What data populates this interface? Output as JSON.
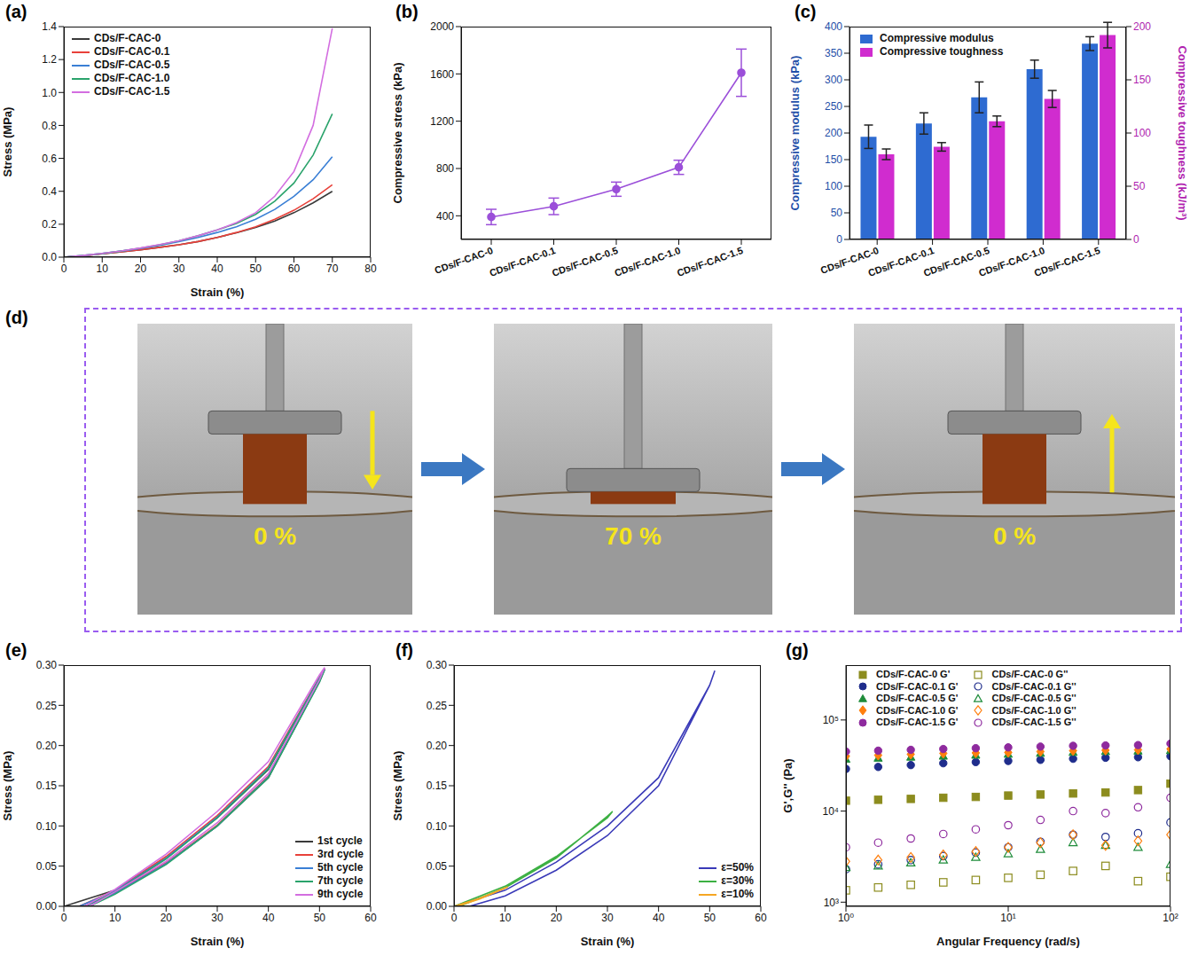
{
  "chart_data": [
    {
      "type": "line",
      "panel": "(a)",
      "x_label": "Strain (%)",
      "y_label": "Stress (MPa)",
      "x": [
        0,
        5,
        10,
        15,
        20,
        25,
        30,
        35,
        40,
        45,
        50,
        55,
        60,
        65,
        70
      ],
      "xlim": [
        0,
        80
      ],
      "xticks": [
        0,
        10,
        20,
        30,
        40,
        50,
        60,
        70,
        80
      ],
      "ylim": [
        0,
        1.4
      ],
      "yticks": [
        {
          "value": 0,
          "label": "0.0"
        },
        0.2,
        0.4,
        0.6,
        0.8,
        {
          "value": 1,
          "label": "1.0"
        },
        1.2,
        1.4
      ],
      "legend": "upper left",
      "series": [
        {
          "name": "CDs/F-CAC-0",
          "color": "#3a3a3a",
          "values": [
            0,
            0.008,
            0.02,
            0.032,
            0.045,
            0.06,
            0.075,
            0.095,
            0.12,
            0.148,
            0.18,
            0.22,
            0.27,
            0.33,
            0.4
          ]
        },
        {
          "name": "CDs/F-CAC-0.1",
          "color": "#e8413a",
          "values": [
            0,
            0.008,
            0.02,
            0.032,
            0.045,
            0.06,
            0.075,
            0.095,
            0.12,
            0.15,
            0.185,
            0.23,
            0.285,
            0.355,
            0.44
          ]
        },
        {
          "name": "CDs/F-CAC-0.5",
          "color": "#3a7fd5",
          "values": [
            0,
            0.01,
            0.022,
            0.037,
            0.053,
            0.072,
            0.095,
            0.12,
            0.15,
            0.185,
            0.23,
            0.29,
            0.37,
            0.47,
            0.61
          ]
        },
        {
          "name": "CDs/F-CAC-1.0",
          "color": "#2aa36b",
          "values": [
            0,
            0.01,
            0.022,
            0.037,
            0.055,
            0.075,
            0.1,
            0.13,
            0.165,
            0.205,
            0.26,
            0.34,
            0.45,
            0.62,
            0.87
          ]
        },
        {
          "name": "CDs/F-CAC-1.5",
          "color": "#d36ee0",
          "values": [
            0,
            0.01,
            0.023,
            0.038,
            0.056,
            0.077,
            0.1,
            0.13,
            0.165,
            0.21,
            0.27,
            0.37,
            0.52,
            0.8,
            1.39
          ]
        }
      ]
    },
    {
      "type": "line",
      "panel": "(b)",
      "y_label": "Compressive stress (kPa)",
      "categories": [
        "CDs/F-CAC-0",
        "CDs/F-CAC-0.1",
        "CDs/F-CAC-0.5",
        "CDs/F-CAC-1.0",
        "CDs/F-CAC-1.5"
      ],
      "values": [
        390,
        480,
        625,
        810,
        1610
      ],
      "errors": [
        65,
        70,
        60,
        60,
        200
      ],
      "color": "#9b4fd9",
      "marker": "circle",
      "ylim": [
        200,
        2000
      ],
      "yticks": [
        400,
        800,
        1200,
        1600,
        2000
      ]
    },
    {
      "type": "bar",
      "panel": "(c)",
      "y_label": "Compressive modulus (kPa)",
      "y2_label": "Compressive toughness (kJ/m³)",
      "categories": [
        "CDs/F-CAC-0",
        "CDs/F-CAC-0.1",
        "CDs/F-CAC-0.5",
        "CDs/F-CAC-1.0",
        "CDs/F-CAC-1.5"
      ],
      "ylim": [
        0,
        400
      ],
      "yticks": [
        0,
        50,
        100,
        150,
        200,
        250,
        300,
        350,
        400
      ],
      "y2lim": [
        0,
        200
      ],
      "y2ticks": [
        0,
        50,
        100,
        150,
        200
      ],
      "legend": "upper left",
      "series": [
        {
          "name": "Compressive modulus",
          "color": "#2e6bd1",
          "values": [
            193,
            218,
            267,
            320,
            368
          ],
          "errors": [
            22,
            20,
            29,
            17,
            13
          ]
        },
        {
          "name": "Compressive toughness",
          "color": "#d02ccf",
          "values": [
            80,
            87,
            111,
            132,
            192
          ],
          "errors": [
            5,
            4,
            5,
            8,
            12
          ],
          "axis": "y2"
        }
      ]
    },
    {
      "type": "photo",
      "panel": "(d)",
      "labels": [
        "0 %",
        "70 %",
        "0 %"
      ]
    },
    {
      "type": "line",
      "panel": "(e)",
      "x_label": "Strain (%)",
      "y_label": "Stress (MPa)",
      "xlim": [
        0,
        60
      ],
      "xticks": [
        0,
        10,
        20,
        30,
        40,
        50,
        60
      ],
      "ylim": [
        0,
        0.3
      ],
      "yticks": [
        {
          "value": 0,
          "label": "0.00"
        },
        0.05,
        {
          "value": 0.1,
          "label": "0.10"
        },
        0.15,
        {
          "value": 0.2,
          "label": "0.20"
        },
        0.25,
        {
          "value": 0.3,
          "label": "0.30"
        }
      ],
      "legend": "lower right",
      "series": [
        {
          "name": "1st cycle",
          "color": "#3a3a3a",
          "x": [
            0,
            10,
            20,
            30,
            40,
            50,
            51,
            50,
            40,
            30,
            20,
            10,
            4
          ],
          "values": [
            0,
            0.02,
            0.06,
            0.11,
            0.17,
            0.283,
            0.295,
            0.28,
            0.16,
            0.1,
            0.053,
            0.017,
            0
          ]
        },
        {
          "name": "3rd cycle",
          "color": "#e8413a",
          "x": [
            3,
            10,
            20,
            30,
            40,
            50,
            51,
            50,
            40,
            30,
            20,
            10,
            4
          ],
          "values": [
            0,
            0.02,
            0.062,
            0.113,
            0.174,
            0.285,
            0.296,
            0.281,
            0.162,
            0.101,
            0.054,
            0.017,
            0
          ]
        },
        {
          "name": "5th cycle",
          "color": "#3a7fd5",
          "x": [
            3,
            10,
            20,
            30,
            40,
            50,
            51,
            50,
            40,
            30,
            20,
            10,
            4
          ],
          "values": [
            0,
            0.019,
            0.06,
            0.111,
            0.172,
            0.284,
            0.295,
            0.28,
            0.161,
            0.1,
            0.053,
            0.016,
            0
          ]
        },
        {
          "name": "7th cycle",
          "color": "#2aa36b",
          "x": [
            4,
            10,
            20,
            30,
            40,
            50,
            51,
            50,
            40,
            30,
            20,
            10,
            5
          ],
          "values": [
            0,
            0.018,
            0.059,
            0.11,
            0.171,
            0.283,
            0.294,
            0.279,
            0.16,
            0.1,
            0.052,
            0.015,
            0
          ]
        },
        {
          "name": "9th cycle",
          "color": "#d36ee0",
          "x": [
            4,
            10,
            20,
            30,
            40,
            50,
            51,
            50,
            40,
            30,
            20,
            10,
            5
          ],
          "values": [
            0,
            0.021,
            0.065,
            0.118,
            0.18,
            0.288,
            0.297,
            0.282,
            0.165,
            0.104,
            0.056,
            0.018,
            0
          ]
        }
      ]
    },
    {
      "type": "line",
      "panel": "(f)",
      "x_label": "Strain (%)",
      "y_label": "Stress (MPa)",
      "xlim": [
        0,
        60
      ],
      "xticks": [
        0,
        10,
        20,
        30,
        40,
        50,
        60
      ],
      "ylim": [
        0,
        0.3
      ],
      "yticks": [
        {
          "value": 0,
          "label": "0.00"
        },
        0.05,
        {
          "value": 0.1,
          "label": "0.10"
        },
        0.15,
        {
          "value": 0.2,
          "label": "0.20"
        },
        0.25,
        {
          "value": 0.3,
          "label": "0.30"
        }
      ],
      "legend": "lower right",
      "series": [
        {
          "name": "ε=50%",
          "color": "#3a3ab8",
          "x": [
            0,
            10,
            20,
            30,
            40,
            50,
            51,
            50,
            40,
            30,
            20,
            10,
            3
          ],
          "values": [
            0,
            0.02,
            0.055,
            0.1,
            0.16,
            0.275,
            0.293,
            0.275,
            0.15,
            0.088,
            0.045,
            0.013,
            0
          ]
        },
        {
          "name": "ε=30%",
          "color": "#3cb043",
          "x": [
            0,
            10,
            20,
            30,
            31,
            30,
            20,
            10,
            1
          ],
          "values": [
            0,
            0.025,
            0.062,
            0.11,
            0.118,
            0.112,
            0.06,
            0.023,
            0
          ]
        },
        {
          "name": "ε=10%",
          "color": "#f5a623",
          "x": [
            0,
            5,
            10,
            10.5,
            5,
            0.5
          ],
          "values": [
            0,
            0.01,
            0.023,
            0.024,
            0.009,
            0
          ]
        }
      ]
    },
    {
      "type": "scatter",
      "panel": "(g)",
      "log": true,
      "x_label": "Angular Frequency (rad/s)",
      "y_label": "G',G'' (Pa)",
      "x": [
        1,
        1.58,
        2.51,
        3.98,
        6.31,
        10,
        15.8,
        25.1,
        39.8,
        63.1,
        100
      ],
      "xlim": [
        1,
        100
      ],
      "xticks": [
        {
          "value": 1,
          "label": "10⁰"
        },
        {
          "value": 10,
          "label": "10¹"
        },
        {
          "value": 100,
          "label": "10²"
        }
      ],
      "ylim": [
        900,
        400000
      ],
      "yticks": [
        {
          "value": 1000,
          "label": "10³"
        },
        {
          "value": 10000,
          "label": "10⁴"
        },
        {
          "value": 100000,
          "label": "10⁵"
        }
      ],
      "legend": "top",
      "series": [
        {
          "name": "CDs/F-CAC-0 G'",
          "color": "#8c8c1e",
          "marker": "square",
          "values": [
            13000,
            13300,
            13600,
            14000,
            14300,
            14800,
            15200,
            15600,
            16000,
            17000,
            20000
          ]
        },
        {
          "name": "CDs/F-CAC-0 G''",
          "color": "#8c8c1e",
          "marker": "open_square",
          "values": [
            1350,
            1450,
            1550,
            1650,
            1750,
            1850,
            2000,
            2200,
            2500,
            1700,
            1900
          ]
        },
        {
          "name": "CDs/F-CAC-0.1 G'",
          "color": "#1f2d8c",
          "marker": "circle",
          "values": [
            29000,
            30500,
            32000,
            33500,
            34500,
            35500,
            36500,
            37500,
            38500,
            39000,
            40000
          ]
        },
        {
          "name": "CDs/F-CAC-0.1 G''",
          "color": "#1f2d8c",
          "marker": "open_circle",
          "values": [
            2300,
            2600,
            2900,
            3200,
            3500,
            4000,
            4600,
            5500,
            5200,
            5700,
            7500
          ]
        },
        {
          "name": "CDs/F-CAC-0.5 G'",
          "color": "#1e8c3a",
          "marker": "triangle",
          "values": [
            37000,
            38000,
            39000,
            40000,
            41000,
            42000,
            43000,
            44000,
            45000,
            45500,
            46000
          ]
        },
        {
          "name": "CDs/F-CAC-0.5 G''",
          "color": "#1e8c3a",
          "marker": "open_triangle",
          "values": [
            2400,
            2500,
            2700,
            2900,
            3100,
            3400,
            3800,
            4500,
            4200,
            4000,
            2600
          ]
        },
        {
          "name": "CDs/F-CAC-1.0 G'",
          "color": "#ff7f0e",
          "marker": "diamond",
          "values": [
            40000,
            41000,
            42000,
            43000,
            43500,
            44000,
            45000,
            46000,
            46500,
            47000,
            48000
          ]
        },
        {
          "name": "CDs/F-CAC-1.0 G''",
          "color": "#ff7f0e",
          "marker": "open_diamond",
          "values": [
            2800,
            2900,
            3100,
            3300,
            3600,
            4000,
            4500,
            5500,
            4200,
            4700,
            5500
          ]
        },
        {
          "name": "CDs/F-CAC-1.5 G'",
          "color": "#8e2a9e",
          "marker": "circle",
          "values": [
            45000,
            46000,
            47000,
            48000,
            49000,
            50000,
            51000,
            52000,
            52500,
            53000,
            55000
          ]
        },
        {
          "name": "CDs/F-CAC-1.5 G''",
          "color": "#8e2a9e",
          "marker": "open_circle",
          "values": [
            4000,
            4500,
            5000,
            5600,
            6300,
            7000,
            8000,
            10000,
            9500,
            11000,
            14000
          ]
        }
      ]
    }
  ]
}
